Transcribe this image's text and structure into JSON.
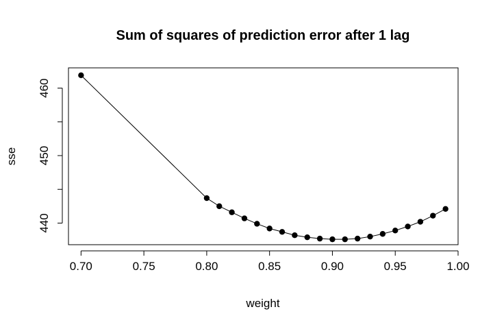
{
  "chart_data": {
    "type": "line",
    "title": "Sum of squares of prediction error after 1 lag",
    "xlabel": "weight",
    "ylabel": "sse",
    "xlim": [
      0.69,
      1.0
    ],
    "ylim": [
      436.8,
      463.0
    ],
    "x_ticks": [
      0.7,
      0.75,
      0.8,
      0.85,
      0.9,
      0.95,
      1.0
    ],
    "x_tick_labels": [
      "0.70",
      "0.75",
      "0.80",
      "0.85",
      "0.90",
      "0.95",
      "1.00"
    ],
    "y_ticks": [
      440,
      445,
      450,
      455,
      460
    ],
    "y_tick_labels": [
      "440",
      "",
      "450",
      "",
      "460"
    ],
    "grid": false,
    "series": [
      {
        "x": [
          0.7,
          0.8,
          0.81,
          0.82,
          0.83,
          0.84,
          0.85,
          0.86,
          0.87,
          0.88,
          0.89,
          0.9,
          0.91,
          0.92,
          0.93,
          0.94,
          0.95,
          0.96,
          0.97,
          0.98,
          0.99
        ],
        "y": [
          461.9,
          443.7,
          442.5,
          441.6,
          440.7,
          439.9,
          439.2,
          438.7,
          438.2,
          437.9,
          437.7,
          437.6,
          437.6,
          437.7,
          438.0,
          438.4,
          438.9,
          439.5,
          440.2,
          441.1,
          442.1
        ]
      }
    ]
  }
}
